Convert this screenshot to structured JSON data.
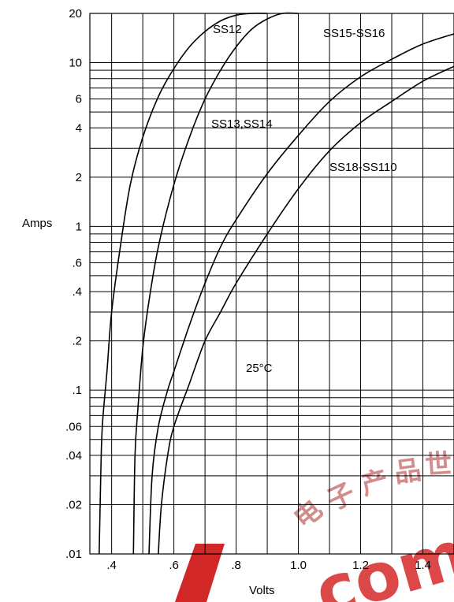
{
  "chart_data": {
    "type": "line",
    "title": "",
    "xlabel": "Volts",
    "ylabel": "Amps",
    "x_scale": "linear",
    "y_scale": "log",
    "xlim": [
      0.33,
      1.5
    ],
    "ylim": [
      0.01,
      20
    ],
    "grid": true,
    "x_ticks": [
      {
        "v": 0.4,
        "label": ".4"
      },
      {
        "v": 0.6,
        "label": ".6"
      },
      {
        "v": 0.8,
        "label": ".8"
      },
      {
        "v": 1.0,
        "label": "1.0"
      },
      {
        "v": 1.2,
        "label": "1.2"
      },
      {
        "v": 1.4,
        "label": "1.4"
      }
    ],
    "y_ticks": [
      {
        "v": 20,
        "label": "20"
      },
      {
        "v": 10,
        "label": "10"
      },
      {
        "v": 6,
        "label": "6"
      },
      {
        "v": 4,
        "label": "4"
      },
      {
        "v": 2,
        "label": "2"
      },
      {
        "v": 1,
        "label": "1"
      },
      {
        "v": 0.6,
        "label": ".6"
      },
      {
        "v": 0.4,
        "label": ".4"
      },
      {
        "v": 0.2,
        "label": ".2"
      },
      {
        "v": 0.1,
        "label": ".1"
      },
      {
        "v": 0.06,
        "label": ".06"
      },
      {
        "v": 0.04,
        "label": ".04"
      },
      {
        "v": 0.02,
        "label": ".02"
      },
      {
        "v": 0.01,
        "label": ".01"
      }
    ],
    "annotation": "25°C",
    "series": [
      {
        "name": "SS12",
        "x": [
          0.36,
          0.365,
          0.37,
          0.385,
          0.4,
          0.43,
          0.46,
          0.5,
          0.55,
          0.6,
          0.65,
          0.7,
          0.75,
          0.8,
          0.85,
          0.9
        ],
        "y": [
          0.01,
          0.03,
          0.06,
          0.13,
          0.3,
          0.8,
          1.8,
          3.5,
          6.2,
          9.2,
          12.5,
          15.5,
          18.0,
          19.5,
          20,
          20
        ]
      },
      {
        "name": "",
        "x": [
          0.47,
          0.475,
          0.485,
          0.5,
          0.52,
          0.55,
          0.6,
          0.65,
          0.7,
          0.75,
          0.8,
          0.85,
          0.9,
          0.95,
          1.0
        ],
        "y": [
          0.01,
          0.04,
          0.08,
          0.18,
          0.35,
          0.75,
          1.8,
          3.5,
          6,
          9,
          12.5,
          16,
          18.5,
          20,
          20
        ]
      },
      {
        "name": "SS13,SS14",
        "x": [
          0.52,
          0.53,
          0.55,
          0.58,
          0.6,
          0.65,
          0.7,
          0.75,
          0.8,
          0.9,
          1.0,
          1.1,
          1.2,
          1.3,
          1.4,
          1.5
        ],
        "y": [
          0.01,
          0.03,
          0.06,
          0.1,
          0.13,
          0.25,
          0.45,
          0.75,
          1.1,
          2.1,
          3.6,
          5.8,
          8.2,
          10.5,
          13,
          15
        ]
      },
      {
        "name": "SS15-SS16",
        "x": [],
        "y": []
      },
      {
        "name": "SS18-SS110",
        "x": [
          0.55,
          0.56,
          0.58,
          0.6,
          0.65,
          0.7,
          0.75,
          0.8,
          0.9,
          1.0,
          1.1,
          1.2,
          1.3,
          1.4,
          1.5
        ],
        "y": [
          0.01,
          0.02,
          0.04,
          0.06,
          0.11,
          0.2,
          0.3,
          0.45,
          0.9,
          1.7,
          2.9,
          4.3,
          5.8,
          7.7,
          9.5
        ]
      }
    ],
    "curve_labels": [
      "SS12",
      "SS13,SS14",
      "SS15-SS16",
      "SS18-SS110"
    ]
  },
  "watermark": {
    "text": "com",
    "color": "#cc1010",
    "glyphs": [
      "电",
      "子",
      "产",
      "品",
      "世"
    ]
  }
}
